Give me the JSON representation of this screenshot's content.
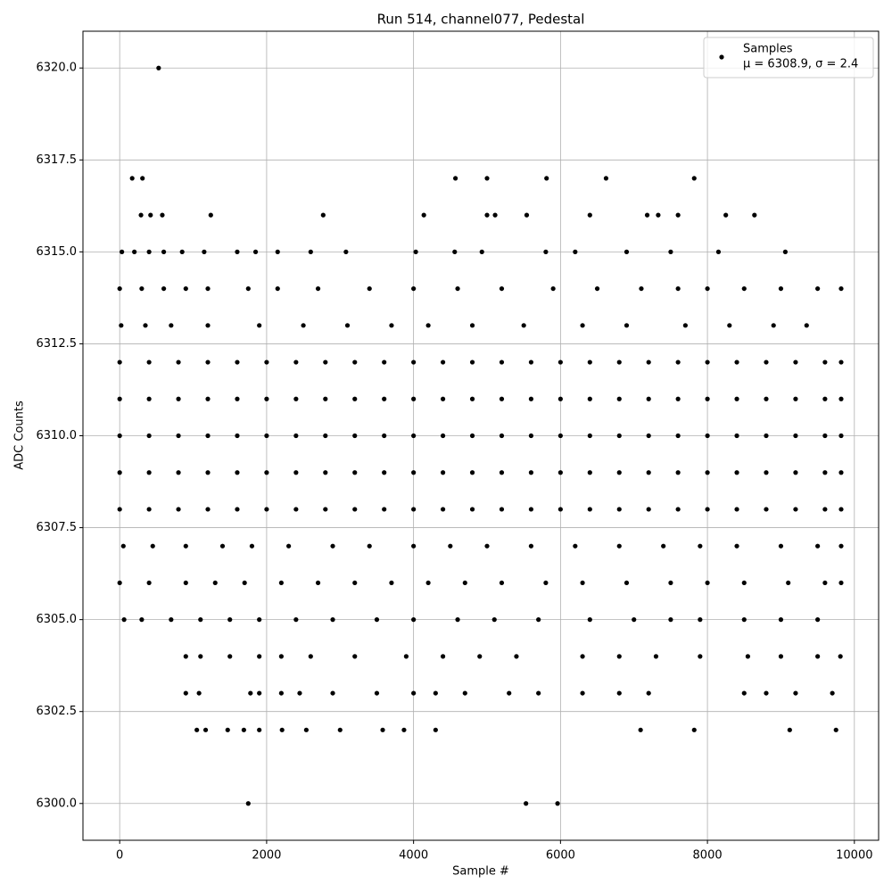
{
  "chart_data": {
    "type": "scatter",
    "title": "Run 514, channel077, Pedestal",
    "xlabel": "Sample #",
    "ylabel": "ADC Counts",
    "legend_text": "μ = 6308.9, σ = 2.4",
    "legend_loc": "upper right",
    "grid": true,
    "xlim": [
      -500,
      10330
    ],
    "ylim": [
      6299.0,
      6321.0
    ],
    "xticks": [
      0,
      2000,
      4000,
      6000,
      8000,
      10000
    ],
    "yticks": [
      {
        "value": 6300,
        "label": "6300.0"
      },
      {
        "value": 6302.5,
        "label": "6302.5"
      },
      {
        "value": 6305,
        "label": "6305.0"
      },
      {
        "value": 6307.5,
        "label": "6307.5"
      },
      {
        "value": 6310,
        "label": "6310.0"
      },
      {
        "value": 6312.5,
        "label": "6312.5"
      },
      {
        "value": 6315,
        "label": "6315.0"
      },
      {
        "value": 6317.5,
        "label": "6317.5"
      },
      {
        "value": 6320,
        "label": "6320.0"
      }
    ],
    "x": [
      530,
      170,
      310,
      4570,
      5000,
      5810,
      6620,
      7820,
      290,
      420,
      580,
      1240,
      2770,
      4140,
      5000,
      5110,
      5540,
      6400,
      7180,
      7330,
      7600,
      8250,
      8640,
      30,
      200,
      400,
      600,
      850,
      1150,
      1600,
      1850,
      2150,
      2600,
      3080,
      4030,
      4560,
      4930,
      5800,
      6200,
      6900,
      7500,
      8150,
      9060,
      0,
      300,
      600,
      900,
      1200,
      1750,
      2150,
      2700,
      3400,
      4000,
      4600,
      5200,
      5900,
      6500,
      7100,
      7600,
      8000,
      8500,
      9000,
      9500,
      9820,
      20,
      350,
      700,
      1200,
      1900,
      2500,
      3100,
      3700,
      4200,
      4800,
      5500,
      6300,
      6900,
      7700,
      8300,
      8900,
      9350,
      0,
      400,
      800,
      1200,
      1600,
      2000,
      2400,
      2800,
      3200,
      3600,
      4000,
      4400,
      4800,
      5200,
      5600,
      6000,
      6400,
      6800,
      7200,
      7600,
      8000,
      8400,
      8800,
      9200,
      9600,
      9820,
      0,
      400,
      800,
      1200,
      1600,
      2000,
      2400,
      2800,
      3200,
      3600,
      4000,
      4400,
      4800,
      5200,
      5600,
      6000,
      6400,
      6800,
      7200,
      7600,
      8000,
      8400,
      8800,
      9200,
      9600,
      9820,
      0,
      400,
      800,
      1200,
      1600,
      2000,
      2400,
      2800,
      3200,
      3600,
      4000,
      4400,
      4800,
      5200,
      5600,
      6000,
      6400,
      6800,
      7200,
      7600,
      8000,
      8400,
      8800,
      9200,
      9600,
      9820,
      0,
      400,
      800,
      1200,
      1600,
      2000,
      2400,
      2800,
      3200,
      3600,
      4000,
      4400,
      4800,
      5200,
      5600,
      6000,
      6400,
      6800,
      7200,
      7600,
      8000,
      8400,
      8800,
      9200,
      9600,
      9820,
      0,
      400,
      800,
      1200,
      1600,
      2000,
      2400,
      2800,
      3200,
      3600,
      4000,
      4400,
      4800,
      5200,
      5600,
      6000,
      6400,
      6800,
      7200,
      7600,
      8000,
      8400,
      8800,
      9200,
      9600,
      9820,
      50,
      450,
      900,
      1400,
      1800,
      2300,
      2900,
      3400,
      4000,
      4500,
      5000,
      5600,
      6200,
      6800,
      7400,
      7900,
      8400,
      9000,
      9500,
      9820,
      0,
      400,
      900,
      1300,
      1700,
      2200,
      2700,
      3200,
      3700,
      4200,
      4700,
      5200,
      5800,
      6300,
      6900,
      7500,
      8000,
      8500,
      9100,
      9600,
      9820,
      60,
      300,
      700,
      1100,
      1500,
      1900,
      2400,
      2900,
      3500,
      4000,
      4600,
      5100,
      5700,
      6400,
      7000,
      7500,
      7900,
      8500,
      9000,
      9500,
      900,
      1100,
      1500,
      1900,
      2200,
      2600,
      3200,
      3900,
      4400,
      4900,
      5400,
      6300,
      6800,
      7300,
      7900,
      8550,
      9000,
      9500,
      9810,
      900,
      1080,
      1780,
      1900,
      2200,
      2450,
      2900,
      3500,
      4000,
      4300,
      4700,
      5300,
      5700,
      6300,
      6800,
      7200,
      8500,
      8800,
      9200,
      9700,
      1050,
      1170,
      1470,
      1690,
      1900,
      2210,
      2540,
      3000,
      3580,
      3870,
      4300,
      7090,
      7820,
      9120,
      9750,
      1750,
      5530,
      5960
    ],
    "series": [
      {
        "name": "Samples",
        "color": "#000000",
        "values": [
          6320,
          6317,
          6317,
          6317,
          6317,
          6317,
          6317,
          6317,
          6316,
          6316,
          6316,
          6316,
          6316,
          6316,
          6316,
          6316,
          6316,
          6316,
          6316,
          6316,
          6316,
          6316,
          6316,
          6315,
          6315,
          6315,
          6315,
          6315,
          6315,
          6315,
          6315,
          6315,
          6315,
          6315,
          6315,
          6315,
          6315,
          6315,
          6315,
          6315,
          6315,
          6315,
          6315,
          6314,
          6314,
          6314,
          6314,
          6314,
          6314,
          6314,
          6314,
          6314,
          6314,
          6314,
          6314,
          6314,
          6314,
          6314,
          6314,
          6314,
          6314,
          6314,
          6314,
          6314,
          6313,
          6313,
          6313,
          6313,
          6313,
          6313,
          6313,
          6313,
          6313,
          6313,
          6313,
          6313,
          6313,
          6313,
          6313,
          6313,
          6313,
          6312,
          6312,
          6312,
          6312,
          6312,
          6312,
          6312,
          6312,
          6312,
          6312,
          6312,
          6312,
          6312,
          6312,
          6312,
          6312,
          6312,
          6312,
          6312,
          6312,
          6312,
          6312,
          6312,
          6312,
          6312,
          6312,
          6311,
          6311,
          6311,
          6311,
          6311,
          6311,
          6311,
          6311,
          6311,
          6311,
          6311,
          6311,
          6311,
          6311,
          6311,
          6311,
          6311,
          6311,
          6311,
          6311,
          6311,
          6311,
          6311,
          6311,
          6311,
          6311,
          6310,
          6310,
          6310,
          6310,
          6310,
          6310,
          6310,
          6310,
          6310,
          6310,
          6310,
          6310,
          6310,
          6310,
          6310,
          6310,
          6310,
          6310,
          6310,
          6310,
          6310,
          6310,
          6310,
          6310,
          6310,
          6310,
          6309,
          6309,
          6309,
          6309,
          6309,
          6309,
          6309,
          6309,
          6309,
          6309,
          6309,
          6309,
          6309,
          6309,
          6309,
          6309,
          6309,
          6309,
          6309,
          6309,
          6309,
          6309,
          6309,
          6309,
          6309,
          6309,
          6308,
          6308,
          6308,
          6308,
          6308,
          6308,
          6308,
          6308,
          6308,
          6308,
          6308,
          6308,
          6308,
          6308,
          6308,
          6308,
          6308,
          6308,
          6308,
          6308,
          6308,
          6308,
          6308,
          6308,
          6308,
          6308,
          6307,
          6307,
          6307,
          6307,
          6307,
          6307,
          6307,
          6307,
          6307,
          6307,
          6307,
          6307,
          6307,
          6307,
          6307,
          6307,
          6307,
          6307,
          6307,
          6307,
          6306,
          6306,
          6306,
          6306,
          6306,
          6306,
          6306,
          6306,
          6306,
          6306,
          6306,
          6306,
          6306,
          6306,
          6306,
          6306,
          6306,
          6306,
          6306,
          6306,
          6306,
          6305,
          6305,
          6305,
          6305,
          6305,
          6305,
          6305,
          6305,
          6305,
          6305,
          6305,
          6305,
          6305,
          6305,
          6305,
          6305,
          6305,
          6305,
          6305,
          6305,
          6304,
          6304,
          6304,
          6304,
          6304,
          6304,
          6304,
          6304,
          6304,
          6304,
          6304,
          6304,
          6304,
          6304,
          6304,
          6304,
          6304,
          6304,
          6304,
          6303,
          6303,
          6303,
          6303,
          6303,
          6303,
          6303,
          6303,
          6303,
          6303,
          6303,
          6303,
          6303,
          6303,
          6303,
          6303,
          6303,
          6303,
          6303,
          6303,
          6302,
          6302,
          6302,
          6302,
          6302,
          6302,
          6302,
          6302,
          6302,
          6302,
          6302,
          6302,
          6302,
          6302,
          6302,
          6300,
          6300,
          6300
        ]
      }
    ]
  }
}
